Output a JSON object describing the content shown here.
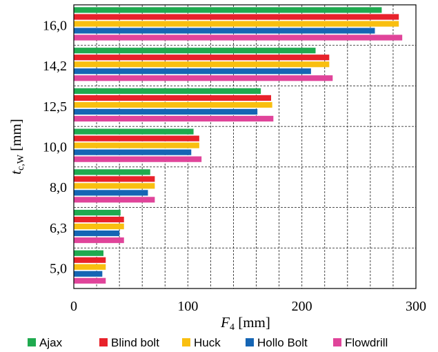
{
  "chart_data": {
    "type": "bar",
    "orientation": "horizontal",
    "categories": [
      "5,0",
      "6,3",
      "8,0",
      "10,0",
      "12,5",
      "14,2",
      "16,0"
    ],
    "series": [
      {
        "name": "Ajax",
        "color": "#1faa4f",
        "values": [
          26,
          41,
          67,
          105,
          164,
          212,
          270
        ]
      },
      {
        "name": "Blind bolt",
        "color": "#e8222b",
        "values": [
          28,
          44,
          71,
          110,
          173,
          224,
          285
        ]
      },
      {
        "name": "Huck",
        "color": "#f9bf10",
        "values": [
          28,
          44,
          71,
          110,
          174,
          224,
          285
        ]
      },
      {
        "name": "Hollo Bolt",
        "color": "#1565b4",
        "values": [
          25,
          40,
          65,
          103,
          161,
          208,
          264
        ]
      },
      {
        "name": "Flowdrill",
        "color": "#e0449a",
        "values": [
          28,
          44,
          71,
          112,
          175,
          227,
          288
        ]
      }
    ],
    "xlim": [
      0,
      300
    ],
    "xticks": [
      "0",
      "100",
      "200",
      "300"
    ],
    "xlabel_main": "F",
    "xlabel_sub": "4",
    "xlabel_unit": " [mm]",
    "ylabel_main": "t",
    "ylabel_sub": "c,W",
    "ylabel_unit": " [mm]",
    "grid": true,
    "legend_position": "bottom"
  }
}
